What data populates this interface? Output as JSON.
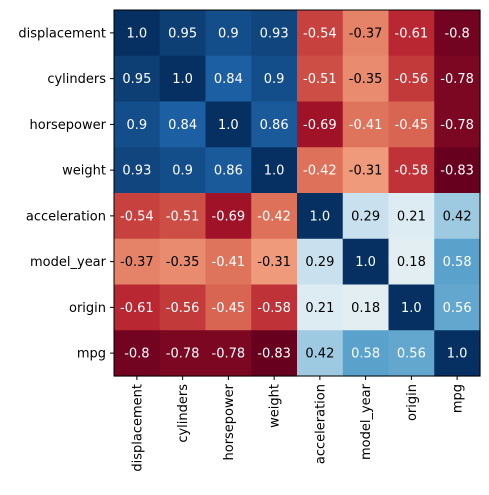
{
  "chart_data": {
    "type": "heatmap",
    "title": "",
    "xlabel": "",
    "ylabel": "",
    "rows": [
      "displacement",
      "cylinders",
      "horsepower",
      "weight",
      "acceleration",
      "model_year",
      "origin",
      "mpg"
    ],
    "columns": [
      "displacement",
      "cylinders",
      "horsepower",
      "weight",
      "acceleration",
      "model_year",
      "origin",
      "mpg"
    ],
    "values": [
      [
        1.0,
        0.95,
        0.9,
        0.93,
        -0.54,
        -0.37,
        -0.61,
        -0.8
      ],
      [
        0.95,
        1.0,
        0.84,
        0.9,
        -0.51,
        -0.35,
        -0.56,
        -0.78
      ],
      [
        0.9,
        0.84,
        1.0,
        0.86,
        -0.69,
        -0.41,
        -0.45,
        -0.78
      ],
      [
        0.93,
        0.9,
        0.86,
        1.0,
        -0.42,
        -0.31,
        -0.58,
        -0.83
      ],
      [
        -0.54,
        -0.51,
        -0.69,
        -0.42,
        1.0,
        0.29,
        0.21,
        0.42
      ],
      [
        -0.37,
        -0.35,
        -0.41,
        -0.31,
        0.29,
        1.0,
        0.18,
        0.58
      ],
      [
        -0.61,
        -0.56,
        -0.45,
        -0.58,
        0.21,
        0.18,
        1.0,
        0.56
      ],
      [
        -0.8,
        -0.78,
        -0.78,
        -0.83,
        0.42,
        0.58,
        0.56,
        1.0
      ]
    ],
    "cell_labels": [
      [
        "1.0",
        "0.95",
        "0.9",
        "0.93",
        "-0.54",
        "-0.37",
        "-0.61",
        "-0.8"
      ],
      [
        "0.95",
        "1.0",
        "0.84",
        "0.9",
        "-0.51",
        "-0.35",
        "-0.56",
        "-0.78"
      ],
      [
        "0.9",
        "0.84",
        "1.0",
        "0.86",
        "-0.69",
        "-0.41",
        "-0.45",
        "-0.78"
      ],
      [
        "0.93",
        "0.9",
        "0.86",
        "1.0",
        "-0.42",
        "-0.31",
        "-0.58",
        "-0.83"
      ],
      [
        "-0.54",
        "-0.51",
        "-0.69",
        "-0.42",
        "1.0",
        "0.29",
        "0.21",
        "0.42"
      ],
      [
        "-0.37",
        "-0.35",
        "-0.41",
        "-0.31",
        "0.29",
        "1.0",
        "0.18",
        "0.58"
      ],
      [
        "-0.61",
        "-0.56",
        "-0.45",
        "-0.58",
        "0.21",
        "0.18",
        "1.0",
        "0.56"
      ],
      [
        "-0.8",
        "-0.78",
        "-0.78",
        "-0.83",
        "0.42",
        "0.58",
        "0.56",
        "1.0"
      ]
    ],
    "color_range": [
      -0.83,
      1.0
    ],
    "colormap": "RdBu",
    "grid": false,
    "legend": "none",
    "colors": {
      "axis": "#000000",
      "text_on_dark": "#ffffff",
      "text_on_light": "#000000"
    }
  }
}
